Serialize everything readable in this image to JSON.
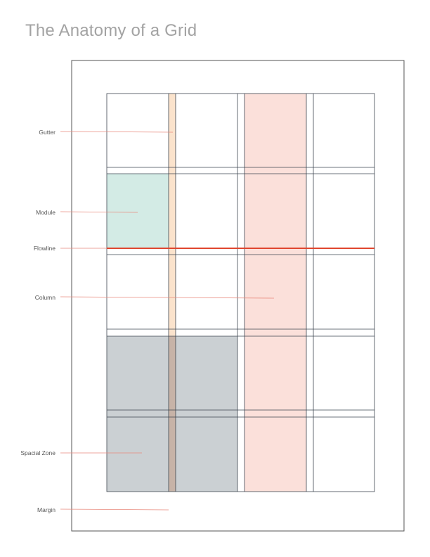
{
  "title": "The Anatomy of a Grid",
  "labels": {
    "gutter": "Gutter",
    "module": "Module",
    "flowline": "Flowline",
    "column": "Column",
    "spacial_zone": "Spacial Zone",
    "margin": "Margin"
  },
  "colors": {
    "gutter": "#fbe3cc",
    "module": "#d3ebe5",
    "column": "#fbe0da",
    "spacial_zone": "#cbd0d3",
    "flowline": "#e0462f",
    "leader": "#e8897c",
    "grid_line": "#3e4650",
    "page_border": "#555555"
  }
}
